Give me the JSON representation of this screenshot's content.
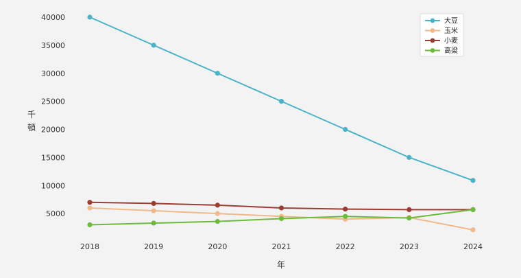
{
  "chart_data": {
    "type": "line",
    "categories": [
      "2018",
      "2019",
      "2020",
      "2021",
      "2022",
      "2023",
      "2024"
    ],
    "series": [
      {
        "name": "大豆",
        "color": "#4ab3c8",
        "values": [
          40000,
          35000,
          30000,
          25000,
          20000,
          15000,
          10900
        ]
      },
      {
        "name": "玉米",
        "color": "#f0b98a",
        "values": [
          6000,
          5500,
          5000,
          4500,
          4000,
          4300,
          2100
        ]
      },
      {
        "name": "小麦",
        "color": "#9c3d34",
        "values": [
          7000,
          6800,
          6500,
          6000,
          5800,
          5700,
          5700
        ]
      },
      {
        "name": "高粱",
        "color": "#6dbb3c",
        "values": [
          3000,
          3300,
          3600,
          4100,
          4500,
          4200,
          5700
        ]
      }
    ],
    "yticks": [
      5000,
      10000,
      15000,
      20000,
      25000,
      30000,
      35000,
      40000
    ],
    "ylim": [
      0,
      40000
    ],
    "xlabel": "年",
    "ylabel": "千頓",
    "grid": false,
    "legend_position": "top-right"
  }
}
